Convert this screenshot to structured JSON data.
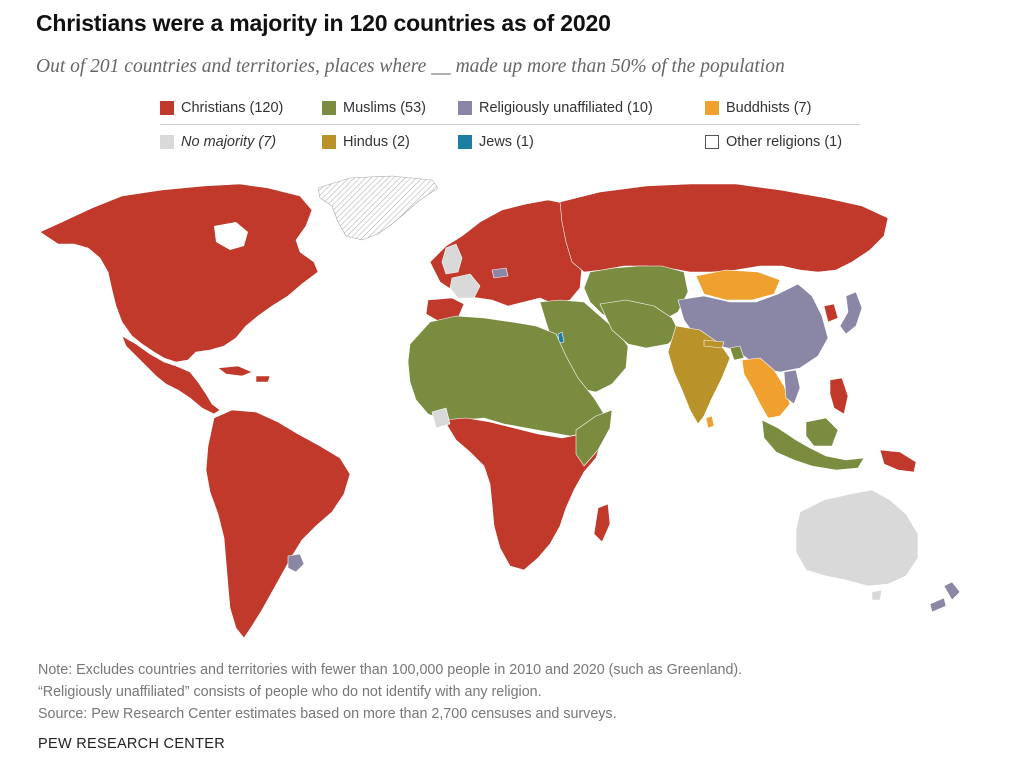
{
  "title": "Christians were a majority in 120 countries as of 2020",
  "subtitle": "Out of 201 countries and territories, places where __ made up more than 50% of the population",
  "legend": [
    {
      "label": "Christians (120)",
      "color": "#c0392b",
      "italic": false
    },
    {
      "label": "Muslims (53)",
      "color": "#7a8c3f",
      "italic": false
    },
    {
      "label": "Religiously unaffiliated (10)",
      "color": "#8a86a6",
      "italic": false
    },
    {
      "label": "Buddhists (7)",
      "color": "#f0a02e",
      "italic": false
    },
    {
      "label": "No majority (7)",
      "color": "#d9d9d9",
      "italic": true
    },
    {
      "label": "Hindus (2)",
      "color": "#b9922a",
      "italic": false
    },
    {
      "label": "Jews (1)",
      "color": "#1c7ea5",
      "italic": false
    },
    {
      "label": "Other religions (1)",
      "color": "#ffffff",
      "italic": false
    }
  ],
  "colors": {
    "christians": "#c0392b",
    "muslims": "#7a8c3f",
    "unaffiliated": "#8a86a6",
    "buddhists": "#f0a02e",
    "no_majority": "#d9d9d9",
    "hindus": "#b9922a",
    "jews": "#1c7ea5",
    "other": "#ffffff"
  },
  "notes": {
    "line1": "Note: Excludes countries and territories with fewer than 100,000 people in 2010 and 2020 (such as Greenland).",
    "line2": "“Religiously unaffiliated” consists of people who do not identify with any religion.",
    "line3": "Source: Pew Research Center estimates based on more than 2,700 censuses and surveys."
  },
  "source_org": "PEW RESEARCH CENTER"
}
